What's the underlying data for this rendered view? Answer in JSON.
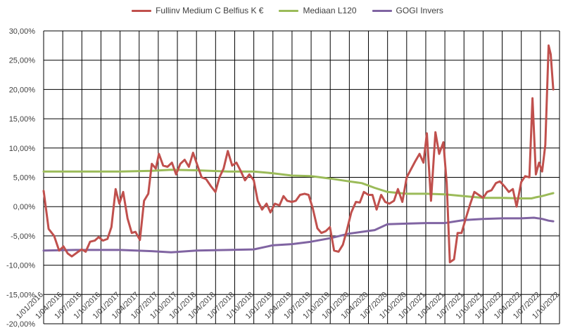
{
  "chart_data": {
    "type": "line",
    "title": "",
    "xlabel": "",
    "ylabel": "",
    "ylim": [
      -0.2,
      0.3
    ],
    "xlim": [
      "2016-01-01",
      "2022-10-01"
    ],
    "grid": true,
    "legend_position": "top",
    "y_ticks": [
      "30,00%",
      "25,00%",
      "20,00%",
      "15,00%",
      "10,00%",
      "5,00%",
      "0,00%",
      "-5,00%",
      "-10,00%",
      "-15,00%",
      "-20,00%"
    ],
    "x_ticks": [
      "1/01/2016",
      "1/04/2016",
      "1/07/2016",
      "1/10/2016",
      "1/01/2017",
      "1/04/2017",
      "1/07/2017",
      "1/10/2017",
      "1/01/2018",
      "1/04/2018",
      "1/07/2018",
      "1/10/2018",
      "1/01/2019",
      "1/04/2019",
      "1/07/2019",
      "1/10/2019",
      "1/01/2020",
      "1/04/2020",
      "1/07/2020",
      "1/10/2020",
      "1/01/2021",
      "1/04/2021",
      "1/07/2021",
      "1/10/2021",
      "1/01/2022",
      "1/04/2022",
      "1/07/2022",
      "1/10/2022"
    ],
    "series": [
      {
        "name": "Fullinv Medium C Belfius K €",
        "color": "#c0504d",
        "points": [
          [
            "2016-01-01",
            0.027
          ],
          [
            "2016-01-25",
            -0.038
          ],
          [
            "2016-02-20",
            -0.05
          ],
          [
            "2016-03-15",
            -0.075
          ],
          [
            "2016-04-05",
            -0.068
          ],
          [
            "2016-04-25",
            -0.08
          ],
          [
            "2016-05-15",
            -0.085
          ],
          [
            "2016-06-10",
            -0.078
          ],
          [
            "2016-07-01",
            -0.073
          ],
          [
            "2016-07-20",
            -0.077
          ],
          [
            "2016-08-10",
            -0.06
          ],
          [
            "2016-09-01",
            -0.058
          ],
          [
            "2016-09-20",
            -0.052
          ],
          [
            "2016-10-10",
            -0.058
          ],
          [
            "2016-11-01",
            -0.055
          ],
          [
            "2016-11-20",
            -0.035
          ],
          [
            "2016-12-10",
            0.03
          ],
          [
            "2016-12-28",
            0.005
          ],
          [
            "2017-01-15",
            0.025
          ],
          [
            "2017-02-05",
            -0.02
          ],
          [
            "2017-02-25",
            -0.045
          ],
          [
            "2017-03-15",
            -0.043
          ],
          [
            "2017-04-05",
            -0.057
          ],
          [
            "2017-04-25",
            0.01
          ],
          [
            "2017-05-15",
            0.022
          ],
          [
            "2017-06-01",
            0.073
          ],
          [
            "2017-06-20",
            0.065
          ],
          [
            "2017-07-05",
            0.09
          ],
          [
            "2017-07-25",
            0.07
          ],
          [
            "2017-08-15",
            0.068
          ],
          [
            "2017-09-05",
            0.075
          ],
          [
            "2017-09-25",
            0.055
          ],
          [
            "2017-10-15",
            0.073
          ],
          [
            "2017-11-05",
            0.08
          ],
          [
            "2017-11-25",
            0.068
          ],
          [
            "2017-12-15",
            0.092
          ],
          [
            "2018-01-05",
            0.07
          ],
          [
            "2018-01-25",
            0.05
          ],
          [
            "2018-02-15",
            0.047
          ],
          [
            "2018-03-10",
            0.035
          ],
          [
            "2018-04-01",
            0.025
          ],
          [
            "2018-04-20",
            0.05
          ],
          [
            "2018-05-10",
            0.065
          ],
          [
            "2018-05-30",
            0.095
          ],
          [
            "2018-06-20",
            0.07
          ],
          [
            "2018-07-10",
            0.075
          ],
          [
            "2018-08-01",
            0.06
          ],
          [
            "2018-08-20",
            0.045
          ],
          [
            "2018-09-10",
            0.055
          ],
          [
            "2018-10-01",
            0.045
          ],
          [
            "2018-10-20",
            0.01
          ],
          [
            "2018-11-10",
            -0.005
          ],
          [
            "2018-12-01",
            0.005
          ],
          [
            "2018-12-20",
            -0.01
          ],
          [
            "2019-01-10",
            0.005
          ],
          [
            "2019-02-01",
            0.002
          ],
          [
            "2019-02-20",
            0.018
          ],
          [
            "2019-03-10",
            0.01
          ],
          [
            "2019-04-01",
            0.008
          ],
          [
            "2019-04-20",
            0.01
          ],
          [
            "2019-05-10",
            0.02
          ],
          [
            "2019-06-01",
            0.022
          ],
          [
            "2019-06-20",
            0.02
          ],
          [
            "2019-07-10",
            -0.003
          ],
          [
            "2019-08-01",
            -0.037
          ],
          [
            "2019-08-20",
            -0.045
          ],
          [
            "2019-09-10",
            -0.042
          ],
          [
            "2019-09-30",
            -0.035
          ],
          [
            "2019-10-20",
            -0.075
          ],
          [
            "2019-11-10",
            -0.077
          ],
          [
            "2019-12-01",
            -0.065
          ],
          [
            "2019-12-20",
            -0.04
          ],
          [
            "2020-01-10",
            -0.01
          ],
          [
            "2020-02-01",
            0.008
          ],
          [
            "2020-02-20",
            0.007
          ],
          [
            "2020-03-10",
            0.025
          ],
          [
            "2020-04-01",
            0.02
          ],
          [
            "2020-04-20",
            0.02
          ],
          [
            "2020-05-10",
            -0.005
          ],
          [
            "2020-06-01",
            0.02
          ],
          [
            "2020-06-20",
            0.008
          ],
          [
            "2020-07-10",
            0.005
          ],
          [
            "2020-08-01",
            0.01
          ],
          [
            "2020-08-20",
            0.03
          ],
          [
            "2020-09-10",
            0.008
          ],
          [
            "2020-10-01",
            0.05
          ],
          [
            "2020-10-20",
            0.063
          ],
          [
            "2020-11-10",
            0.077
          ],
          [
            "2020-12-01",
            0.09
          ],
          [
            "2020-12-20",
            0.075
          ],
          [
            "2021-01-05",
            0.125
          ],
          [
            "2021-01-25",
            0.01
          ],
          [
            "2021-02-15",
            0.127
          ],
          [
            "2021-03-05",
            0.09
          ],
          [
            "2021-03-25",
            0.11
          ],
          [
            "2021-04-10",
            0.04
          ],
          [
            "2021-04-25",
            -0.095
          ],
          [
            "2021-05-15",
            -0.09
          ],
          [
            "2021-06-01",
            -0.045
          ],
          [
            "2021-06-20",
            -0.045
          ],
          [
            "2021-07-10",
            -0.02
          ],
          [
            "2021-08-01",
            0.005
          ],
          [
            "2021-08-20",
            0.025
          ],
          [
            "2021-09-10",
            0.02
          ],
          [
            "2021-10-01",
            0.015
          ],
          [
            "2021-10-20",
            0.025
          ],
          [
            "2021-11-10",
            0.028
          ],
          [
            "2021-12-01",
            0.04
          ],
          [
            "2021-12-20",
            0.043
          ],
          [
            "2022-01-10",
            0.035
          ],
          [
            "2022-02-01",
            0.025
          ],
          [
            "2022-02-20",
            0.03
          ],
          [
            "2022-03-10",
            0.0
          ],
          [
            "2022-04-01",
            0.042
          ],
          [
            "2022-04-20",
            0.052
          ],
          [
            "2022-05-10",
            0.05
          ],
          [
            "2022-05-25",
            0.185
          ],
          [
            "2022-06-10",
            0.055
          ],
          [
            "2022-06-25",
            0.075
          ],
          [
            "2022-07-10",
            0.06
          ],
          [
            "2022-07-25",
            0.105
          ],
          [
            "2022-08-10",
            0.275
          ],
          [
            "2022-08-20",
            0.26
          ],
          [
            "2022-09-01",
            0.2
          ]
        ]
      },
      {
        "name": "Mediaan L120",
        "color": "#9bbb59",
        "points": [
          [
            "2016-01-01",
            0.06
          ],
          [
            "2016-06-01",
            0.06
          ],
          [
            "2017-01-01",
            0.06
          ],
          [
            "2017-06-01",
            0.061
          ],
          [
            "2017-09-01",
            0.063
          ],
          [
            "2018-01-01",
            0.062
          ],
          [
            "2018-06-01",
            0.06
          ],
          [
            "2018-10-01",
            0.06
          ],
          [
            "2019-01-01",
            0.057
          ],
          [
            "2019-04-01",
            0.053
          ],
          [
            "2019-07-01",
            0.052
          ],
          [
            "2019-10-01",
            0.048
          ],
          [
            "2020-01-01",
            0.043
          ],
          [
            "2020-03-01",
            0.04
          ],
          [
            "2020-05-01",
            0.032
          ],
          [
            "2020-07-01",
            0.025
          ],
          [
            "2020-10-01",
            0.022
          ],
          [
            "2021-01-01",
            0.022
          ],
          [
            "2021-04-01",
            0.021
          ],
          [
            "2021-07-01",
            0.018
          ],
          [
            "2021-10-01",
            0.015
          ],
          [
            "2022-01-01",
            0.015
          ],
          [
            "2022-04-01",
            0.014
          ],
          [
            "2022-05-20",
            0.014
          ],
          [
            "2022-06-10",
            0.016
          ],
          [
            "2022-07-10",
            0.018
          ],
          [
            "2022-08-10",
            0.021
          ],
          [
            "2022-09-01",
            0.023
          ]
        ]
      },
      {
        "name": "GOGI Invers",
        "color": "#8064a2",
        "points": [
          [
            "2016-01-01",
            -0.075
          ],
          [
            "2016-06-01",
            -0.074
          ],
          [
            "2017-01-01",
            -0.074
          ],
          [
            "2017-06-01",
            -0.076
          ],
          [
            "2017-09-01",
            -0.078
          ],
          [
            "2018-01-01",
            -0.075
          ],
          [
            "2018-06-01",
            -0.074
          ],
          [
            "2018-10-01",
            -0.073
          ],
          [
            "2019-01-01",
            -0.066
          ],
          [
            "2019-04-01",
            -0.064
          ],
          [
            "2019-07-01",
            -0.06
          ],
          [
            "2019-10-01",
            -0.054
          ],
          [
            "2020-01-01",
            -0.046
          ],
          [
            "2020-03-01",
            -0.043
          ],
          [
            "2020-05-01",
            -0.04
          ],
          [
            "2020-07-01",
            -0.03
          ],
          [
            "2020-10-01",
            -0.029
          ],
          [
            "2021-01-01",
            -0.028
          ],
          [
            "2021-04-01",
            -0.028
          ],
          [
            "2021-07-01",
            -0.023
          ],
          [
            "2021-10-01",
            -0.021
          ],
          [
            "2022-01-01",
            -0.02
          ],
          [
            "2022-04-01",
            -0.02
          ],
          [
            "2022-06-01",
            -0.019
          ],
          [
            "2022-07-10",
            -0.021
          ],
          [
            "2022-08-10",
            -0.024
          ],
          [
            "2022-09-01",
            -0.025
          ]
        ]
      }
    ]
  }
}
